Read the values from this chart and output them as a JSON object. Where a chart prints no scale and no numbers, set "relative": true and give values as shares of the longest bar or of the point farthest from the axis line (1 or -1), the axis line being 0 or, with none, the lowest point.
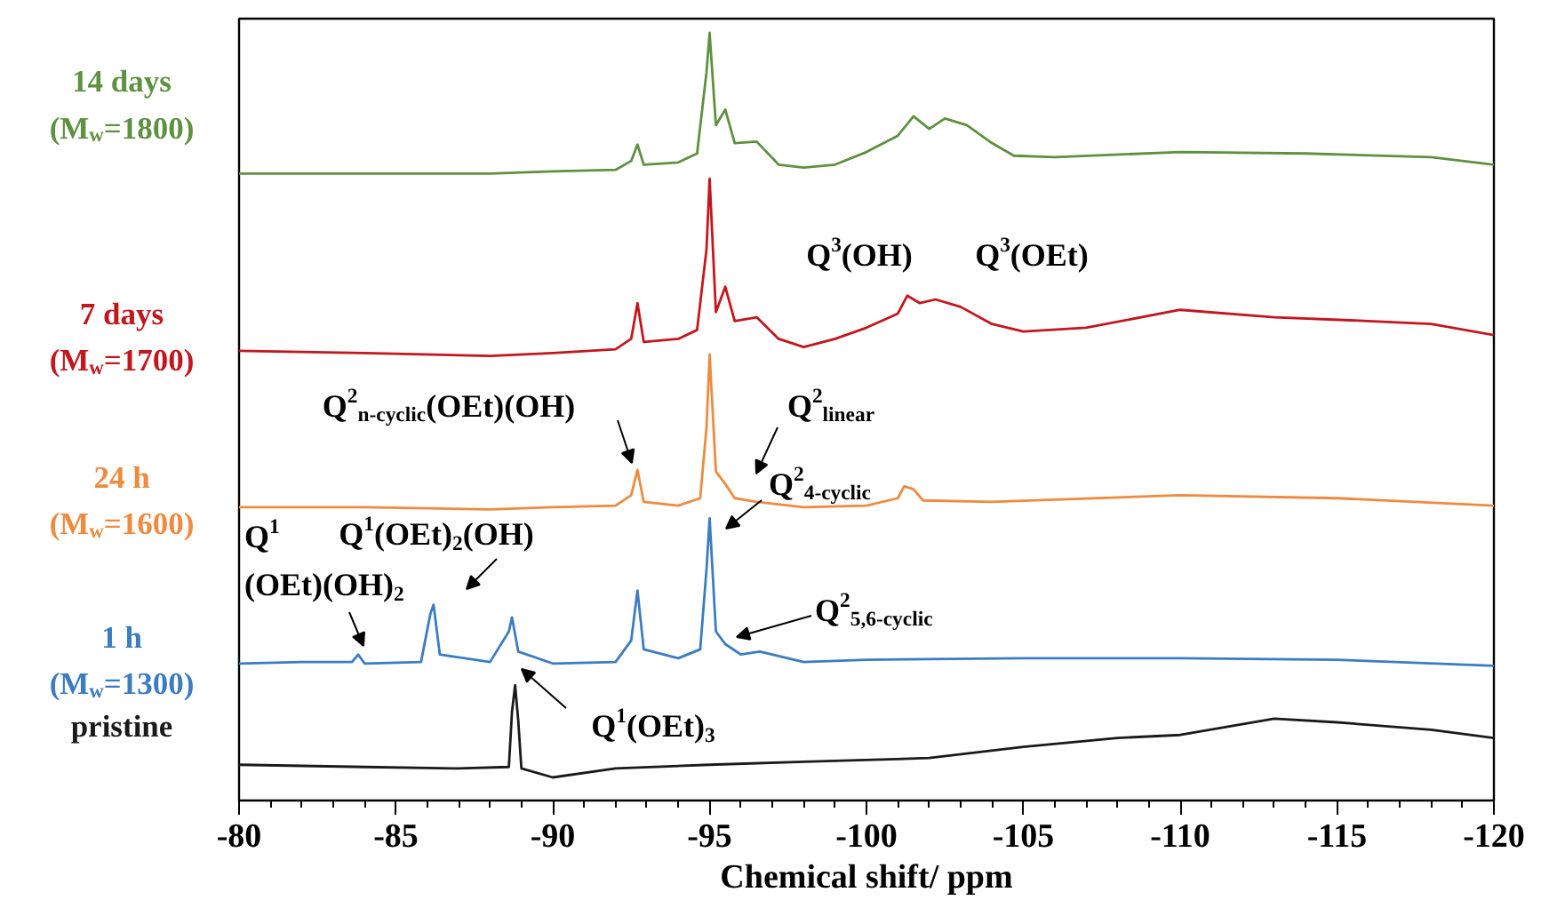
{
  "chart_data": {
    "type": "line",
    "relative": true,
    "xlabel": "Chemical shift/ ppm",
    "xlim": [
      -80,
      -120
    ],
    "xticks": [
      -80,
      -85,
      -90,
      -95,
      -100,
      -105,
      -110,
      -115,
      -120
    ],
    "grid": false,
    "marker": "none",
    "line_style": "solid",
    "series": [
      {
        "name": "14 days\n(M$_{w}$=1800)",
        "color": "#5e9140",
        "x": [
          -80,
          -84,
          -88,
          -90,
          -92,
          -92.5,
          -92.7,
          -92.9,
          -94,
          -94.6,
          -94.9,
          -95.0,
          -95.2,
          -95.5,
          -95.8,
          -96.5,
          -97.2,
          -98,
          -99,
          -100,
          -101,
          -101.5,
          -102,
          -102.5,
          -103.2,
          -104,
          -104.7,
          -106,
          -110,
          -114,
          -118,
          -120
        ],
        "values": [
          0.811,
          0.811,
          0.811,
          0.814,
          0.816,
          0.828,
          0.85,
          0.823,
          0.826,
          0.838,
          0.947,
          1,
          0.876,
          0.897,
          0.852,
          0.854,
          0.823,
          0.819,
          0.823,
          0.84,
          0.862,
          0.888,
          0.871,
          0.885,
          0.876,
          0.852,
          0.835,
          0.833,
          0.84,
          0.838,
          0.833,
          0.823
        ]
      },
      {
        "name": "7 days\n(M$_{w}$=1700)",
        "color": "#c4161c",
        "x": [
          -80,
          -84,
          -88,
          -90,
          -92,
          -92.5,
          -92.7,
          -92.9,
          -94,
          -94.6,
          -94.9,
          -95.0,
          -95.2,
          -95.5,
          -95.8,
          -96.5,
          -97.2,
          -98,
          -99,
          -100,
          -101,
          -101.3,
          -101.7,
          -102.2,
          -103,
          -104,
          -105,
          -107,
          -110,
          -113,
          -116,
          -118,
          -120
        ],
        "values": [
          0.573,
          0.57,
          0.566,
          0.57,
          0.575,
          0.589,
          0.637,
          0.585,
          0.589,
          0.601,
          0.709,
          0.804,
          0.625,
          0.659,
          0.613,
          0.618,
          0.589,
          0.578,
          0.589,
          0.604,
          0.623,
          0.647,
          0.637,
          0.642,
          0.632,
          0.609,
          0.599,
          0.604,
          0.628,
          0.618,
          0.613,
          0.609,
          0.594
        ]
      },
      {
        "name": "24 h\n(M$_{w}$=1600)",
        "color": "#f08a3e",
        "x": [
          -80,
          -84,
          -88,
          -90,
          -92,
          -92.5,
          -92.7,
          -92.9,
          -94,
          -94.7,
          -94.9,
          -95.0,
          -95.2,
          -95.5,
          -95.8,
          -96.5,
          -98,
          -100,
          -101,
          -101.2,
          -101.5,
          -101.8,
          -104,
          -110,
          -115,
          -120
        ],
        "values": [
          0.363,
          0.363,
          0.36,
          0.363,
          0.365,
          0.379,
          0.413,
          0.37,
          0.365,
          0.375,
          0.47,
          0.568,
          0.411,
          0.394,
          0.375,
          0.37,
          0.363,
          0.365,
          0.375,
          0.391,
          0.387,
          0.372,
          0.37,
          0.379,
          0.375,
          0.365
        ]
      },
      {
        "name": "1 h\n(M$_{w}$=1300)",
        "color": "#3b7cc2",
        "x": [
          -80,
          -82,
          -83.6,
          -83.8,
          -84,
          -85.8,
          -86.1,
          -86.2,
          -86.4,
          -88,
          -88.6,
          -88.7,
          -88.9,
          -90,
          -92,
          -92.5,
          -92.7,
          -92.9,
          -94,
          -94.7,
          -94.9,
          -95.0,
          -95.2,
          -95.5,
          -96,
          -96.6,
          -98,
          -100,
          -105,
          -110,
          -115,
          -120
        ],
        "values": [
          0.153,
          0.155,
          0.155,
          0.165,
          0.153,
          0.155,
          0.22,
          0.232,
          0.165,
          0.155,
          0.196,
          0.215,
          0.169,
          0.153,
          0.155,
          0.184,
          0.251,
          0.172,
          0.16,
          0.172,
          0.279,
          0.348,
          0.196,
          0.179,
          0.165,
          0.169,
          0.155,
          0.158,
          0.16,
          0.16,
          0.158,
          0.15
        ]
      },
      {
        "name": "pristine",
        "color": "#1a1a1a",
        "x": [
          -80,
          -84,
          -87,
          -88.6,
          -88.7,
          -88.8,
          -88.9,
          -89,
          -90,
          -92,
          -95,
          -98,
          -102,
          -105,
          -108,
          -110,
          -113,
          -115,
          -118,
          -120
        ],
        "values": [
          0.017,
          0.014,
          0.012,
          0.014,
          0.088,
          0.124,
          0.076,
          0.012,
          0,
          0.012,
          0.017,
          0.021,
          0.026,
          0.041,
          0.053,
          0.057,
          0.079,
          0.074,
          0.064,
          0.053
        ]
      }
    ],
    "annotations": [
      "Q$^{3}$(OH)",
      "Q$^{3}$(OEt)",
      "Q$^{2}$$_{n-cyclic}$(OEt)(OH)",
      "Q$^{2}$$_{linear}$",
      "Q$^{1}$(OEt)$_{2}$(OH)",
      "Q$^{1}$\n(OEt)(OH)$_{2}$",
      "Q$^{2}$$_{4-cyclic}$",
      "Q$^{2}$$_{5,6-cyclic}$",
      "Q$^{1}$(OEt)$_{3}$"
    ]
  }
}
